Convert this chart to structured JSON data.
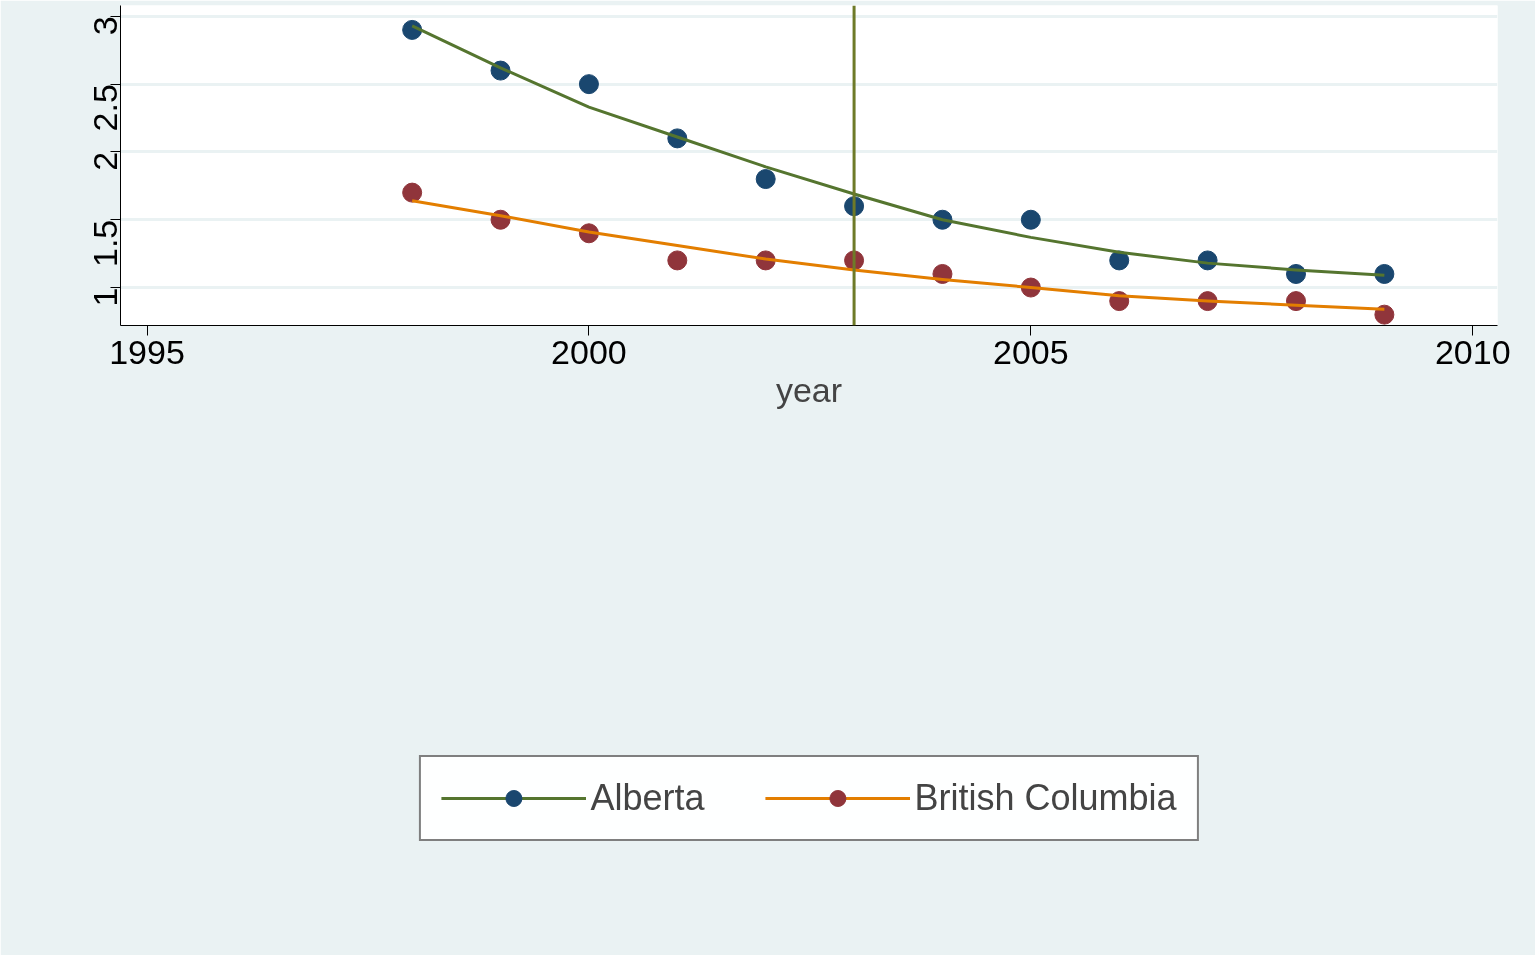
{
  "chart_data": {
    "type": "scatter",
    "xlabel": "year",
    "x": [
      1998,
      1999,
      2000,
      2001,
      2002,
      2003,
      2004,
      2005,
      2006,
      2007,
      2008,
      2009
    ],
    "series": [
      {
        "name": "Alberta",
        "marker": "circle",
        "color": "#1a476f",
        "values": [
          2.9,
          2.6,
          2.5,
          2.1,
          1.8,
          1.6,
          1.5,
          1.5,
          1.2,
          1.2,
          1.1,
          1.1
        ]
      },
      {
        "type": "line",
        "color": "#55752f",
        "values": [
          2.93,
          2.62,
          2.33,
          2.11,
          1.89,
          1.69,
          1.5,
          1.37,
          1.26,
          1.18,
          1.13,
          1.09
        ]
      },
      {
        "name": "British Columbia",
        "marker": "circle",
        "color": "#90353b",
        "values": [
          1.7,
          1.5,
          1.4,
          1.2,
          1.2,
          1.2,
          1.1,
          1.0,
          0.9,
          0.9,
          0.9,
          0.8
        ]
      },
      {
        "type": "line",
        "color": "#e37e00",
        "values": [
          1.64,
          1.53,
          1.41,
          1.31,
          1.21,
          1.13,
          1.06,
          1.0,
          0.94,
          0.9,
          0.87,
          0.84
        ]
      }
    ],
    "xlim": [
      1994.7,
      2010.28
    ],
    "ylim": [
      0.72,
      3.08
    ],
    "xticks": [
      1995,
      2000,
      2005,
      2010
    ],
    "yticks": [
      1,
      1.5,
      2,
      2.5,
      3
    ],
    "ref_lines": [
      {
        "axis": "x",
        "value": 2003,
        "label": null,
        "color": "#6e7a28"
      }
    ],
    "grid": "y",
    "legend": "bottom"
  }
}
